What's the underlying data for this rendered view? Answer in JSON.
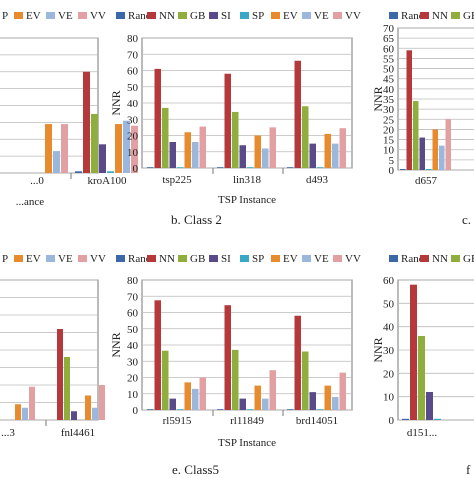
{
  "colors": {
    "Rand": "#3a68a8",
    "NN": "#b5383a",
    "GB": "#8fae3e",
    "SI": "#5a4a8a",
    "SP": "#3aa7c4",
    "EV": "#e88a2e",
    "VE": "#9bb7dc",
    "VV": "#e3a0a3"
  },
  "chart_data": [
    {
      "id": "a",
      "type": "bar",
      "title": "",
      "xlabel": "...ance",
      "ylabel": "",
      "categories": [
        "...0",
        "kroA100"
      ],
      "series": [
        {
          "name": "Rand",
          "values": [
            0,
            1
          ]
        },
        {
          "name": "NN",
          "values": [
            0,
            60
          ]
        },
        {
          "name": "GB",
          "values": [
            0,
            35
          ]
        },
        {
          "name": "SI",
          "values": [
            0,
            17
          ]
        },
        {
          "name": "SP",
          "values": [
            0,
            1
          ]
        },
        {
          "name": "EV",
          "values": [
            29,
            29
          ]
        },
        {
          "name": "VE",
          "values": [
            13,
            31
          ]
        },
        {
          "name": "VV",
          "values": [
            29,
            28
          ]
        }
      ],
      "ylim": [
        0,
        80
      ],
      "legend": [
        "EV",
        "VE",
        "VV"
      ],
      "legend_partial": "P"
    },
    {
      "id": "b",
      "type": "bar",
      "title": "b. Class 2",
      "xlabel": "TSP Instance",
      "ylabel": "NNR",
      "categories": [
        "tsp225",
        "lin318",
        "d493"
      ],
      "series": [
        {
          "name": "Rand",
          "values": [
            0.5,
            0.5,
            0.5
          ]
        },
        {
          "name": "NN",
          "values": [
            61,
            58,
            66
          ]
        },
        {
          "name": "GB",
          "values": [
            37,
            34.5,
            38
          ]
        },
        {
          "name": "SI",
          "values": [
            16,
            14,
            15
          ]
        },
        {
          "name": "SP",
          "values": [
            0.5,
            0.5,
            0.5
          ]
        },
        {
          "name": "EV",
          "values": [
            22,
            20,
            21
          ]
        },
        {
          "name": "VE",
          "values": [
            16,
            12,
            15
          ]
        },
        {
          "name": "VV",
          "values": [
            25.5,
            25,
            24.5
          ]
        }
      ],
      "yticks": [
        0,
        10,
        20,
        30,
        40,
        50,
        60,
        70,
        80
      ],
      "ylim": [
        0,
        80
      ],
      "legend": [
        "Rand",
        "NN",
        "GB",
        "SI",
        "SP",
        "EV",
        "VE",
        "VV"
      ]
    },
    {
      "id": "c",
      "type": "bar",
      "title": "c.",
      "xlabel": "",
      "ylabel": "NNR",
      "categories": [
        "d657"
      ],
      "series": [
        {
          "name": "Rand",
          "values": [
            0.5
          ]
        },
        {
          "name": "NN",
          "values": [
            59
          ]
        },
        {
          "name": "GB",
          "values": [
            34
          ]
        },
        {
          "name": "SI",
          "values": [
            16
          ]
        },
        {
          "name": "SP",
          "values": [
            0.5
          ]
        },
        {
          "name": "EV",
          "values": [
            20
          ]
        },
        {
          "name": "VE",
          "values": [
            12
          ]
        },
        {
          "name": "VV",
          "values": [
            25
          ]
        }
      ],
      "yticks": [
        0,
        5,
        10,
        15,
        20,
        25,
        30,
        35,
        40,
        45,
        50,
        55,
        60,
        65,
        70
      ],
      "ylim": [
        0,
        70
      ],
      "legend": [
        "Rand",
        "NN",
        "GB"
      ]
    },
    {
      "id": "d",
      "type": "bar",
      "title": "",
      "xlabel": "",
      "ylabel": "",
      "categories": [
        "...3",
        "fnl4461"
      ],
      "series": [
        {
          "name": "Rand",
          "values": [
            0,
            0
          ]
        },
        {
          "name": "NN",
          "values": [
            0,
            52
          ]
        },
        {
          "name": "GB",
          "values": [
            0,
            36
          ]
        },
        {
          "name": "SI",
          "values": [
            0,
            5
          ]
        },
        {
          "name": "SP",
          "values": [
            0,
            0
          ]
        },
        {
          "name": "EV",
          "values": [
            9,
            14
          ]
        },
        {
          "name": "VE",
          "values": [
            7,
            7
          ]
        },
        {
          "name": "VV",
          "values": [
            19,
            20
          ]
        }
      ],
      "ylim": [
        0,
        80
      ],
      "legend": [
        "EV",
        "VE",
        "VV"
      ],
      "legend_partial": "P"
    },
    {
      "id": "e",
      "type": "bar",
      "title": "e. Class5",
      "xlabel": "TSP Instance",
      "ylabel": "NNR",
      "categories": [
        "rl5915",
        "rl11849",
        "brd14051"
      ],
      "series": [
        {
          "name": "Rand",
          "values": [
            0.5,
            0.5,
            0.5
          ]
        },
        {
          "name": "NN",
          "values": [
            67.5,
            64.5,
            58
          ]
        },
        {
          "name": "GB",
          "values": [
            36.5,
            37,
            36
          ]
        },
        {
          "name": "SI",
          "values": [
            7,
            7,
            11
          ]
        },
        {
          "name": "SP",
          "values": [
            0.5,
            0.5,
            0.5
          ]
        },
        {
          "name": "EV",
          "values": [
            17,
            15,
            15
          ]
        },
        {
          "name": "VE",
          "values": [
            13,
            7,
            8
          ]
        },
        {
          "name": "VV",
          "values": [
            20,
            24.5,
            23
          ]
        }
      ],
      "yticks": [
        0,
        10,
        20,
        30,
        40,
        50,
        60,
        70,
        80
      ],
      "ylim": [
        0,
        80
      ],
      "legend": [
        "Rand",
        "NN",
        "GB",
        "SI",
        "SP",
        "EV",
        "VE",
        "VV"
      ]
    },
    {
      "id": "f",
      "type": "bar",
      "title": "f",
      "xlabel": "",
      "ylabel": "NNR",
      "categories": [
        "d151..."
      ],
      "series": [
        {
          "name": "Rand",
          "values": [
            0.5
          ]
        },
        {
          "name": "NN",
          "values": [
            58
          ]
        },
        {
          "name": "GB",
          "values": [
            36
          ]
        },
        {
          "name": "SI",
          "values": [
            12
          ]
        },
        {
          "name": "SP",
          "values": [
            0.5
          ]
        }
      ],
      "yticks": [
        0,
        10,
        20,
        30,
        40,
        50,
        60
      ],
      "ylim": [
        0,
        60
      ],
      "legend": [
        "Rand",
        "NN",
        "GB"
      ]
    }
  ]
}
